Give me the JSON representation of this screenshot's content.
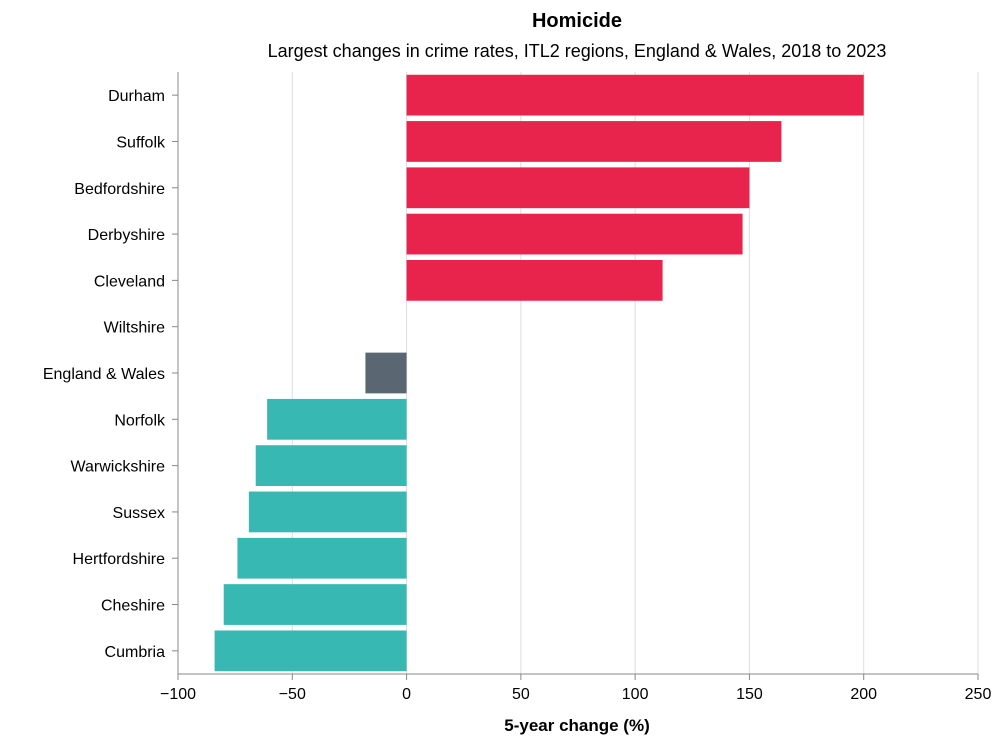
{
  "chart_data": {
    "type": "bar",
    "orientation": "horizontal",
    "title": "Homicide",
    "subtitle": "Largest changes in crime rates, ITL2 regions, England & Wales, 2018 to 2023",
    "xlabel": "5-year change (%)",
    "ylabel": "",
    "xlim": [
      -100,
      250
    ],
    "xticks": [
      -100,
      -50,
      0,
      50,
      100,
      150,
      200,
      250
    ],
    "xtick_labels": [
      "−100",
      "−50",
      "0",
      "50",
      "100",
      "150",
      "200",
      "250"
    ],
    "grid": true,
    "categories": [
      "Durham",
      "Suffolk",
      "Bedfordshire",
      "Derbyshire",
      "Cleveland",
      "Wiltshire",
      "England & Wales",
      "Norfolk",
      "Warwickshire",
      "Sussex",
      "Hertfordshire",
      "Cheshire",
      "Cumbria"
    ],
    "values": [
      200,
      164,
      150,
      147,
      112,
      0,
      -18,
      -61,
      -66,
      -69,
      -74,
      -80,
      -84
    ],
    "colors": {
      "increase": "#e8234c",
      "national": "#5a6772",
      "decrease": "#38b8b2"
    },
    "groups": [
      "increase",
      "increase",
      "increase",
      "increase",
      "increase",
      "increase",
      "national",
      "decrease",
      "decrease",
      "decrease",
      "decrease",
      "decrease",
      "decrease"
    ]
  }
}
